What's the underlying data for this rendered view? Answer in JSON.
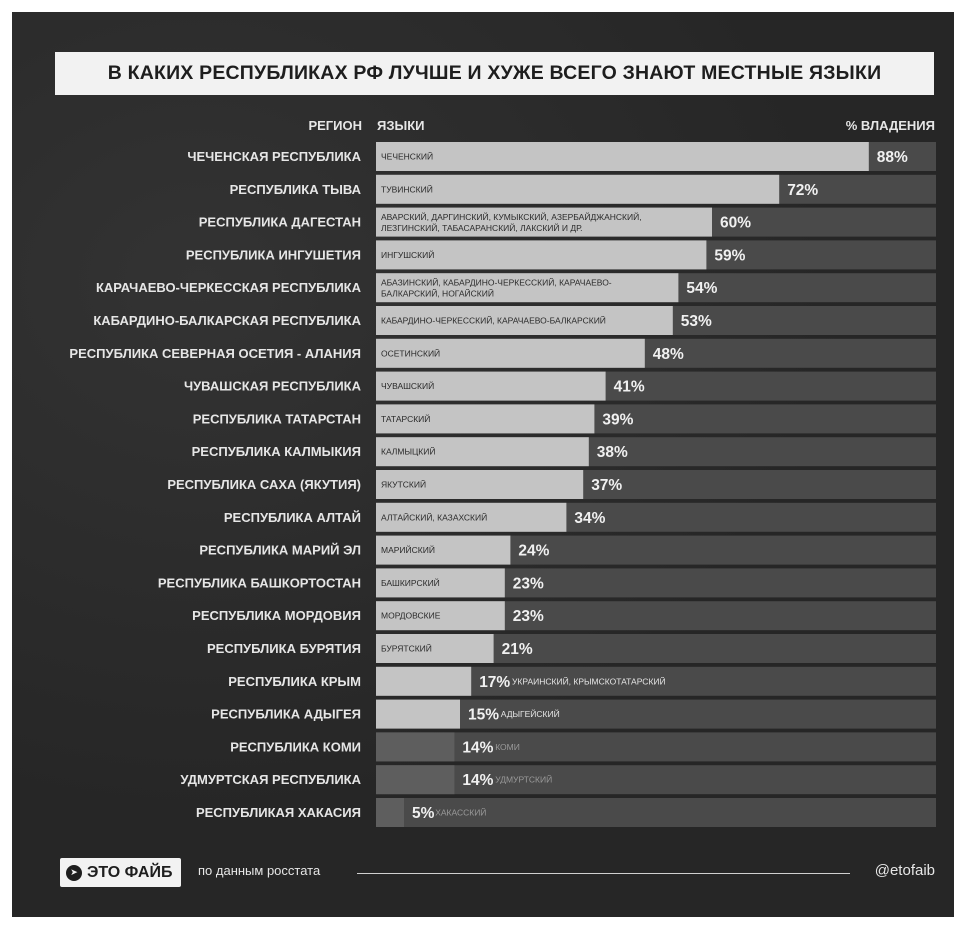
{
  "title": "В КАКИХ РЕСПУБЛИКАХ РФ ЛУЧШЕ И ХУЖЕ ВСЕГО ЗНАЮТ МЕСТНЫЕ ЯЗЫКИ",
  "headers": {
    "region": "РЕГИОН",
    "languages": "ЯЗЫКИ",
    "percent": "% ВЛАДЕНИЯ"
  },
  "footer": {
    "logo": "ЭТО ФАЙБ",
    "source": "по данным росстата",
    "handle": "@etofaib"
  },
  "colors": {
    "background": "#2a2a2a",
    "track": "#4a4a4a",
    "bar_light": "#c4c4c4",
    "bar_mid": "#5e5e5e",
    "text": "#e6e6e6"
  },
  "chart_data": {
    "type": "bar",
    "orientation": "horizontal",
    "xlim": [
      0,
      100
    ],
    "unit": "%",
    "rows": [
      {
        "region": "ЧЕЧЕНСКАЯ РЕСПУБЛИКА",
        "languages": [
          "ЧЕЧЕНСКИЙ"
        ],
        "value": 88
      },
      {
        "region": "РЕСПУБЛИКА ТЫВА",
        "languages": [
          "ТУВИНСКИЙ"
        ],
        "value": 72
      },
      {
        "region": "РЕСПУБЛИКА ДАГЕСТАН",
        "languages": [
          "АВАРСКИЙ, ДАРГИНСКИЙ, КУМЫКСКИЙ, АЗЕРБАЙДЖАНСКИЙ,",
          "ЛЕЗГИНСКИЙ, ТАБАСАРАНСКИЙ, ЛАКСКИЙ И ДР."
        ],
        "value": 60
      },
      {
        "region": "РЕСПУБЛИКА ИНГУШЕТИЯ",
        "languages": [
          "ИНГУШСКИЙ"
        ],
        "value": 59
      },
      {
        "region": "КАРАЧАЕВО-ЧЕРКЕССКАЯ РЕСПУБЛИКА",
        "languages": [
          "АБАЗИНСКИЙ, КАБАРДИНО-ЧЕРКЕССКИЙ, КАРАЧАЕВО-",
          "БАЛКАРСКИЙ, НОГАЙСКИЙ"
        ],
        "value": 54
      },
      {
        "region": "КАБАРДИНО-БАЛКАРСКАЯ РЕСПУБЛИКА",
        "languages": [
          "КАБАРДИНО-ЧЕРКЕССКИЙ, КАРАЧАЕВО-БАЛКАРСКИЙ"
        ],
        "value": 53
      },
      {
        "region": "РЕСПУБЛИКА СЕВЕРНАЯ ОСЕТИЯ - АЛАНИЯ",
        "languages": [
          "ОСЕТИНСКИЙ"
        ],
        "value": 48
      },
      {
        "region": "ЧУВАШСКАЯ РЕСПУБЛИКА",
        "languages": [
          "ЧУВАШСКИЙ"
        ],
        "value": 41
      },
      {
        "region": "РЕСПУБЛИКА ТАТАРСТАН",
        "languages": [
          "ТАТАРСКИЙ"
        ],
        "value": 39
      },
      {
        "region": "РЕСПУБЛИКА КАЛМЫКИЯ",
        "languages": [
          "КАЛМЫЦКИЙ"
        ],
        "value": 38
      },
      {
        "region": "РЕСПУБЛИКА САХА (ЯКУТИЯ)",
        "languages": [
          "ЯКУТСКИЙ"
        ],
        "value": 37
      },
      {
        "region": "РЕСПУБЛИКА АЛТАЙ",
        "languages": [
          "АЛТАЙСКИЙ, КАЗАХСКИЙ"
        ],
        "value": 34
      },
      {
        "region": "РЕСПУБЛИКА МАРИЙ ЭЛ",
        "languages": [
          "МАРИЙСКИЙ"
        ],
        "value": 24
      },
      {
        "region": "РЕСПУБЛИКА БАШКОРТОСТАН",
        "languages": [
          "БАШКИРСКИЙ"
        ],
        "value": 23
      },
      {
        "region": "РЕСПУБЛИКА МОРДОВИЯ",
        "languages": [
          "МОРДОВСКИЕ"
        ],
        "value": 23
      },
      {
        "region": "РЕСПУБЛИКА БУРЯТИЯ",
        "languages": [
          "БУРЯТСКИЙ"
        ],
        "value": 21
      },
      {
        "region": "РЕСПУБЛИКА КРЫМ",
        "languages": [
          "УКРАИНСКИЙ, КРЫМСКОТАТАРСКИЙ"
        ],
        "value": 17
      },
      {
        "region": "РЕСПУБЛИКА АДЫГЕЯ",
        "languages": [
          "АДЫГЕЙСКИЙ"
        ],
        "value": 15
      },
      {
        "region": "РЕСПУБЛИКА КОМИ",
        "languages": [
          "КОМИ"
        ],
        "value": 14
      },
      {
        "region": "УДМУРТСКАЯ РЕСПУБЛИКА",
        "languages": [
          "УДМУРТСКИЙ"
        ],
        "value": 14
      },
      {
        "region": "РЕСПУБЛИКАЯ ХАКАСИЯ",
        "languages": [
          "ХАКАССКИЙ"
        ],
        "value": 5
      }
    ]
  }
}
